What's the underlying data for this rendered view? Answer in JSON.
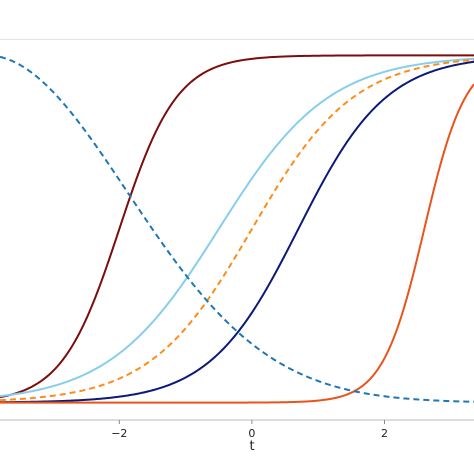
{
  "chart_data": {
    "type": "line",
    "title": "",
    "xlabel": "t",
    "ylabel": "",
    "xlim": [
      -3.8,
      3.35
    ],
    "ylim": [
      -0.05,
      1.05
    ],
    "grid": false,
    "legend": "none",
    "x_ticks": [
      {
        "value": -2,
        "label": "−2"
      },
      {
        "value": 0,
        "label": "0"
      },
      {
        "value": 2,
        "label": "2"
      }
    ],
    "y_reference_line": 1.0,
    "series": [
      {
        "color": "#7b0d0d",
        "dashed": false,
        "function": "logistic",
        "center": -2.0,
        "slope": 2.3
      },
      {
        "color": "#87ceeb",
        "dashed": false,
        "function": "logistic",
        "center": -0.5,
        "slope": 1.2
      },
      {
        "color": "#ff8c1a",
        "dashed": true,
        "function": "logistic",
        "center": 0.0,
        "slope": 1.3
      },
      {
        "color": "#0b1a78",
        "dashed": false,
        "function": "logistic",
        "center": 0.7,
        "slope": 1.5
      },
      {
        "color": "#e8541c",
        "dashed": false,
        "function": "logistic",
        "center": 2.6,
        "slope": 3.2
      },
      {
        "color": "#1f77b4",
        "dashed": true,
        "function": "gaussian",
        "center": -4.0,
        "width": 3.0
      }
    ]
  }
}
